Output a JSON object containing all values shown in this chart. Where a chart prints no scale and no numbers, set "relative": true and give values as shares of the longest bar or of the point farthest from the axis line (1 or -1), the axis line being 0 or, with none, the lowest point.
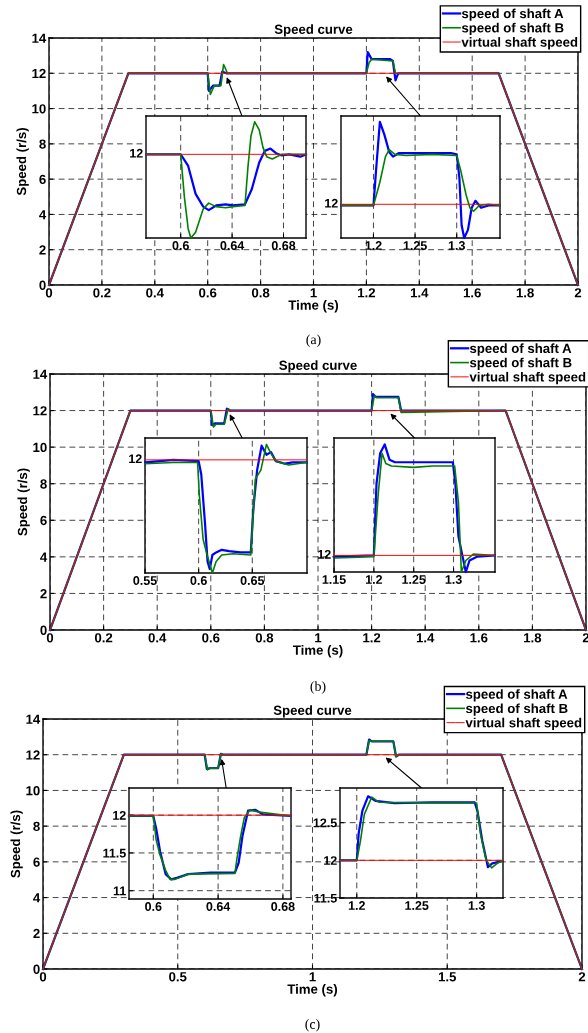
{
  "chart_data": [
    {
      "type": "line",
      "title": "Speed curve",
      "xlabel": "Time (s)",
      "ylabel": "Speed (r/s)",
      "xlim": [
        0,
        2
      ],
      "ylim": [
        0,
        14
      ],
      "xticks": [
        0,
        0.2,
        0.4,
        0.6,
        0.8,
        1,
        1.2,
        1.4,
        1.6,
        1.8,
        2
      ],
      "yticks": [
        0,
        2,
        4,
        6,
        8,
        10,
        12,
        14
      ],
      "grid": true,
      "legend": "top right",
      "annotations": [
        "(a)"
      ],
      "series": [
        {
          "name": "speed of shaft A",
          "color": "#0000ff",
          "x": [
            0,
            0.3,
            0.6,
            0.605,
            0.62,
            0.645,
            0.655,
            0.67,
            1.2,
            1.205,
            1.22,
            1.29,
            1.3,
            1.31,
            1.32,
            1.7,
            2
          ],
          "values": [
            0,
            12,
            12,
            11,
            11.3,
            11.3,
            12.1,
            12,
            12,
            13.2,
            12.8,
            12.8,
            12.7,
            11.6,
            12,
            12,
            0
          ]
        },
        {
          "name": "speed of shaft B",
          "color": "#008000",
          "x": [
            0,
            0.3,
            0.6,
            0.61,
            0.625,
            0.65,
            0.66,
            0.675,
            1.2,
            1.21,
            1.22,
            1.3,
            1.31,
            1.7,
            2
          ],
          "values": [
            0,
            12,
            12,
            10.8,
            11.3,
            11.3,
            12.5,
            12,
            12,
            12.6,
            12.8,
            12.7,
            12,
            12,
            0
          ]
        },
        {
          "name": "virtual shaft speed",
          "color": "#ff0000",
          "x": [
            0,
            0.3,
            1.7,
            2
          ],
          "values": [
            0,
            12,
            12,
            0
          ]
        }
      ]
    },
    {
      "type": "line",
      "relative": true,
      "xlim": [
        0.573,
        0.6975
      ],
      "xticks": [
        0.6,
        0.64,
        0.68
      ],
      "grid": "x",
      "annotations": [
        {
          "text": "12",
          "x": 0.573,
          "y": 0.72
        }
      ],
      "series": [
        {
          "color": "#0000ff",
          "x": [
            0.5732,
            0.6,
            0.6058,
            0.6116,
            0.6175,
            0.6218,
            0.6276,
            0.6349,
            0.6407,
            0.65,
            0.6553,
            0.6611,
            0.6655,
            0.6698,
            0.6742,
            0.6786,
            0.6844,
            0.6931,
            0.6975
          ],
          "values": [
            0.72,
            0.72,
            0.62,
            0.38,
            0.27,
            0.24,
            0.28,
            0.29,
            0.28,
            0.29,
            0.42,
            0.65,
            0.75,
            0.77,
            0.73,
            0.71,
            0.72,
            0.7,
            0.72
          ]
        },
        {
          "color": "#008000",
          "x": [
            0.5732,
            0.6,
            0.6029,
            0.6058,
            0.6079,
            0.6116,
            0.6175,
            0.6218,
            0.6276,
            0.6349,
            0.6407,
            0.65,
            0.6524,
            0.6547,
            0.6576,
            0.6611,
            0.664,
            0.6669,
            0.6713,
            0.6786,
            0.6902,
            0.6975
          ],
          "values": [
            0.72,
            0.72,
            0.35,
            0.08,
            0,
            0.05,
            0.25,
            0.3,
            0.27,
            0.26,
            0.27,
            0.28,
            0.62,
            0.88,
            1,
            0.93,
            0.78,
            0.7,
            0.68,
            0.72,
            0.72,
            0.72
          ]
        },
        {
          "color": "#ff0000",
          "x": [
            0.573,
            0.6975
          ],
          "values": [
            0.72,
            0.72
          ]
        }
      ]
    },
    {
      "type": "line",
      "relative": true,
      "xlim": [
        1.161,
        1.352
      ],
      "xticks": [
        1.2,
        1.25,
        1.3
      ],
      "grid": "x",
      "annotations": [
        {
          "text": "12",
          "x": 1.161,
          "y": 0.29
        }
      ],
      "series": [
        {
          "color": "#0000ff",
          "x": [
            1.1613,
            1.2,
            1.2032,
            1.2077,
            1.2131,
            1.2189,
            1.2234,
            1.2302,
            1.2482,
            1.2707,
            1.2932,
            1.3,
            1.3032,
            1.3059,
            1.309,
            1.3135,
            1.318,
            1.3225,
            1.3293,
            1.3383,
            1.3518
          ],
          "values": [
            0.28,
            0.28,
            0.59,
            1,
            0.89,
            0.74,
            0.7,
            0.73,
            0.73,
            0.73,
            0.73,
            0.72,
            0.52,
            0.11,
            0,
            0.07,
            0.26,
            0.32,
            0.26,
            0.28,
            0.28
          ]
        },
        {
          "color": "#008000",
          "x": [
            1.1613,
            1.2,
            1.2077,
            1.2144,
            1.2189,
            1.2257,
            1.2392,
            1.2707,
            1.3,
            1.3045,
            1.3113,
            1.3158,
            1.3203,
            1.327,
            1.3383,
            1.3518
          ],
          "values": [
            0.28,
            0.28,
            0.48,
            0.7,
            0.76,
            0.72,
            0.71,
            0.72,
            0.71,
            0.59,
            0.37,
            0.26,
            0.23,
            0.28,
            0.29,
            0.28
          ]
        },
        {
          "color": "#ff0000",
          "x": [
            1.161,
            1.352
          ],
          "values": [
            0.29,
            0.29
          ]
        }
      ]
    },
    {
      "type": "line",
      "title": "Speed curve",
      "xlabel": "Time (s)",
      "ylabel": "Speed (r/s)",
      "xlim": [
        0,
        2
      ],
      "ylim": [
        0,
        14
      ],
      "xticks": [
        0,
        0.2,
        0.4,
        0.6,
        0.8,
        1,
        1.2,
        1.4,
        1.6,
        1.8,
        2
      ],
      "yticks": [
        0,
        2,
        4,
        6,
        8,
        10,
        12,
        14
      ],
      "grid": true,
      "legend": "top right",
      "annotations": [
        "(b)"
      ],
      "series": [
        {
          "name": "speed of shaft A",
          "color": "#0000ff",
          "x": [
            0,
            0.3,
            0.6,
            0.605,
            0.615,
            0.65,
            0.66,
            0.67,
            1.2,
            1.205,
            1.215,
            1.3,
            1.31,
            1.7,
            2
          ],
          "values": [
            0,
            12,
            12,
            11.2,
            11.3,
            11.3,
            12.1,
            12,
            12,
            12.9,
            12.75,
            12.75,
            12,
            12,
            0
          ]
        },
        {
          "name": "speed of shaft B",
          "color": "#008000",
          "x": [
            0,
            0.3,
            0.6,
            0.61,
            0.62,
            0.65,
            0.665,
            0.675,
            1.2,
            1.21,
            1.22,
            1.3,
            1.31,
            1.7,
            2
          ],
          "values": [
            0,
            12,
            12,
            11.1,
            11.25,
            11.25,
            12.1,
            12,
            12,
            12.8,
            12.7,
            12.7,
            11.9,
            12,
            0
          ]
        },
        {
          "name": "virtual shaft speed",
          "color": "#ff0000",
          "x": [
            0,
            0.3,
            1.7,
            2
          ],
          "values": [
            0,
            12,
            12,
            0
          ]
        }
      ]
    },
    {
      "type": "line",
      "relative": true,
      "xlim": [
        0.55,
        0.701
      ],
      "xticks": [
        0.55,
        0.6,
        0.65
      ],
      "grid": "x",
      "annotations": [
        {
          "text": "12",
          "x": 0.55,
          "y": 0.88
        }
      ],
      "series": [
        {
          "color": "#0000ff",
          "x": [
            0.5503,
            0.5764,
            0.6,
            0.6024,
            0.6059,
            0.6083,
            0.6104,
            0.6128,
            0.6163,
            0.6215,
            0.6285,
            0.6389,
            0.6486,
            0.651,
            0.6545,
            0.6587,
            0.6632,
            0.6674,
            0.6719,
            0.6806,
            0.6875,
            0.7007
          ],
          "values": [
            0.86,
            0.88,
            0.87,
            0.77,
            0.39,
            0.09,
            0.03,
            0.14,
            0.16,
            0.18,
            0.17,
            0.16,
            0.16,
            0.5,
            0.8,
            0.99,
            0.92,
            0.94,
            0.87,
            0.85,
            0.86,
            0.86
          ]
        },
        {
          "color": "#008000",
          "x": [
            0.5503,
            0.5764,
            0.599,
            0.6007,
            0.6042,
            0.6076,
            0.6128,
            0.6163,
            0.6215,
            0.6319,
            0.6486,
            0.6528,
            0.658,
            0.6632,
            0.6667,
            0.6719,
            0.684,
            0.7007
          ],
          "values": [
            0.85,
            0.86,
            0.86,
            0.6,
            0.26,
            0.15,
            0,
            0.09,
            0.14,
            0.15,
            0.14,
            0.73,
            0.8,
            1,
            0.94,
            0.87,
            0.84,
            0.86
          ]
        },
        {
          "color": "#ff0000",
          "x": [
            0.55,
            0.701
          ],
          "values": [
            0.88,
            0.88
          ]
        }
      ]
    },
    {
      "type": "line",
      "relative": true,
      "xlim": [
        1.15,
        1.352
      ],
      "xticks": [
        1.15,
        1.2,
        1.25,
        1.3
      ],
      "grid": "x",
      "annotations": [
        {
          "text": "12",
          "x": 1.15,
          "y": 0.13
        }
      ],
      "series": [
        {
          "color": "#0000ff",
          "x": [
            1.1519,
            1.2,
            1.2033,
            1.2079,
            1.2136,
            1.2196,
            1.2266,
            1.25,
            1.2734,
            1.2991,
            1.3023,
            1.3061,
            1.3107,
            1.3154,
            1.32,
            1.3294,
            1.3519
          ],
          "values": [
            0.12,
            0.13,
            0.69,
            0.93,
            1,
            0.88,
            0.86,
            0.86,
            0.86,
            0.86,
            0.69,
            0.28,
            0.14,
            0,
            0.09,
            0.12,
            0.13
          ]
        },
        {
          "color": "#008000",
          "x": [
            1.1519,
            1.2,
            1.2056,
            1.2103,
            1.215,
            1.222,
            1.25,
            1.2734,
            1.3014,
            1.3061,
            1.3098,
            1.3154,
            1.3248,
            1.3519
          ],
          "values": [
            0.11,
            0.12,
            0.62,
            0.93,
            0.85,
            0.83,
            0.82,
            0.83,
            0.83,
            0.55,
            0,
            0.09,
            0.14,
            0.13
          ]
        },
        {
          "color": "#ff0000",
          "x": [
            1.15,
            1.352
          ],
          "values": [
            0.13,
            0.13
          ]
        }
      ]
    },
    {
      "type": "line",
      "title": "Speed curve",
      "xlabel": "Time (s)",
      "ylabel": "Speed (r/s)",
      "xlim": [
        0,
        2
      ],
      "ylim": [
        0,
        14
      ],
      "xticks": [
        0,
        0.5,
        1,
        1.5,
        2
      ],
      "yticks": [
        0,
        2,
        4,
        6,
        8,
        10,
        12,
        14
      ],
      "grid": true,
      "legend": "top right",
      "annotations": [
        "(c)"
      ],
      "series": [
        {
          "name": "speed of shaft A",
          "color": "#0000ff",
          "x": [
            0,
            0.3,
            0.6,
            0.608,
            0.62,
            0.65,
            0.66,
            0.67,
            1.2,
            1.21,
            1.22,
            1.3,
            1.31,
            1.32,
            1.7,
            2
          ],
          "values": [
            0,
            12,
            12,
            11.2,
            11.25,
            11.25,
            12.05,
            12,
            12,
            12.85,
            12.75,
            12.75,
            11.9,
            12,
            12,
            0
          ]
        },
        {
          "name": "speed of shaft B",
          "color": "#008000",
          "x": [
            0,
            0.3,
            0.6,
            0.61,
            0.62,
            0.65,
            0.66,
            0.67,
            1.2,
            1.21,
            1.22,
            1.3,
            1.31,
            1.32,
            1.7,
            2
          ],
          "values": [
            0,
            12,
            12,
            11.15,
            11.25,
            11.25,
            12.05,
            12,
            12,
            12.8,
            12.75,
            12.75,
            11.9,
            12,
            12,
            0
          ]
        },
        {
          "name": "virtual shaft speed",
          "color": "#ff0000",
          "x": [
            0,
            0.3,
            1.7,
            2
          ],
          "values": [
            0,
            12,
            12,
            0
          ]
        }
      ]
    },
    {
      "type": "line",
      "xlim": [
        0.585,
        0.685
      ],
      "ylim": [
        10.89,
        12.36
      ],
      "xticks": [
        0.6,
        0.64,
        0.68
      ],
      "yticks": [
        11,
        11.5,
        12
      ],
      "grid": true,
      "series": [
        {
          "color": "#0000ff",
          "x": [
            0.585,
            0.6,
            0.6018,
            0.6042,
            0.6076,
            0.6111,
            0.6146,
            0.6215,
            0.6354,
            0.6504,
            0.6527,
            0.655,
            0.6585,
            0.6631,
            0.6677,
            0.6846
          ],
          "values": [
            11.99,
            11.99,
            11.82,
            11.52,
            11.22,
            11.15,
            11.17,
            11.22,
            11.24,
            11.24,
            11.37,
            11.72,
            12.06,
            12.07,
            12.01,
            11.99
          ]
        },
        {
          "color": "#008000",
          "x": [
            0.585,
            0.6,
            0.6018,
            0.6042,
            0.6076,
            0.6104,
            0.6134,
            0.6215,
            0.6504,
            0.6516,
            0.6539,
            0.6562,
            0.6597,
            0.6654,
            0.6846
          ],
          "values": [
            11.99,
            11.99,
            11.67,
            11.47,
            11.27,
            11.15,
            11.15,
            11.22,
            11.23,
            11.42,
            11.72,
            11.97,
            12.07,
            12.04,
            11.99
          ]
        },
        {
          "color": "#ff0000",
          "x": [
            0.585,
            0.685
          ],
          "values": [
            12,
            12
          ]
        }
      ]
    },
    {
      "type": "line",
      "xlim": [
        1.186,
        1.322
      ],
      "ylim": [
        11.5,
        12.96
      ],
      "xticks": [
        1.2,
        1.25,
        1.3
      ],
      "yticks": [
        11.5,
        12,
        12.5
      ],
      "grid": true,
      "series": [
        {
          "color": "#0000ff",
          "x": [
            1.186,
            1.2,
            1.2016,
            1.2047,
            1.2094,
            1.2156,
            1.2313,
            1.2625,
            1.2984,
            1.3006,
            1.3047,
            1.3094,
            1.3131,
            1.3213
          ],
          "values": [
            12,
            12,
            12.36,
            12.66,
            12.85,
            12.79,
            12.76,
            12.77,
            12.77,
            12.66,
            12.26,
            11.91,
            11.96,
            11.99
          ]
        },
        {
          "color": "#008000",
          "x": [
            1.186,
            1.2,
            1.2031,
            1.2063,
            1.2125,
            1.2188,
            1.2625,
            1.3,
            1.3031,
            1.3078,
            1.3125,
            1.3172,
            1.3213
          ],
          "values": [
            12,
            12,
            12.26,
            12.61,
            12.84,
            12.77,
            12.76,
            12.76,
            12.36,
            12.01,
            11.9,
            11.96,
            11.99
          ]
        },
        {
          "color": "#ff0000",
          "x": [
            1.186,
            1.322
          ],
          "values": [
            12,
            12
          ]
        }
      ]
    }
  ]
}
